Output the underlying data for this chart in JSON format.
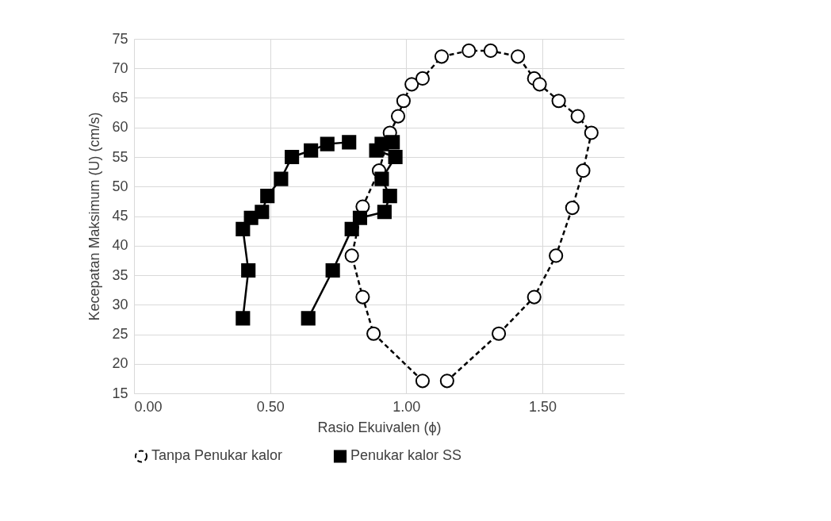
{
  "chart_data": {
    "type": "line",
    "xlabel": "Rasio Ekuivalen (ϕ)",
    "ylabel": "Kecepatan Maksimum  (U) (cm/s)",
    "xlim": [
      0,
      1.8
    ],
    "xticks": [
      {
        "value": 0,
        "label": "0.00"
      },
      {
        "value": 0.5,
        "label": "0.50"
      },
      {
        "value": 1,
        "label": "1.00"
      },
      {
        "value": 1.5,
        "label": "1.50"
      }
    ],
    "ylim": [
      15,
      75
    ],
    "yticks": [
      15,
      20,
      25,
      30,
      35,
      40,
      45,
      50,
      55,
      60,
      65,
      70,
      75
    ],
    "grid": true,
    "legend": "bottom",
    "series": [
      {
        "name": "Tanpa Penukar kalor",
        "color": "#000000",
        "marker": "circle",
        "line_style": "dashed",
        "x": [
          1.06,
          0.88,
          0.84,
          0.8,
          0.84,
          0.9,
          0.94,
          0.97,
          0.99,
          1.02,
          1.06,
          1.13,
          1.23,
          1.31,
          1.41,
          1.47,
          1.49,
          1.56,
          1.63,
          1.68,
          1.65,
          1.61,
          1.55,
          1.47,
          1.34,
          1.15
        ],
        "values": [
          17.1,
          25.1,
          31.3,
          38.3,
          46.6,
          52.7,
          59.1,
          61.9,
          64.5,
          67.3,
          68.3,
          72,
          73,
          73,
          72,
          68.3,
          67.3,
          64.5,
          61.9,
          59.1,
          52.7,
          46.4,
          38.3,
          31.3,
          25.1,
          17.1
        ]
      },
      {
        "name": "Penukar kalor SS",
        "color": "#000000",
        "marker": "square",
        "line_style": "solid",
        "x": [
          0.4,
          0.42,
          0.4,
          0.43,
          0.47,
          0.49,
          0.54,
          0.58,
          0.65,
          0.71,
          0.79,
          null,
          0.64,
          0.73,
          0.8,
          0.83,
          0.92,
          0.94,
          0.91,
          0.96,
          0.89,
          0.91,
          0.95
        ],
        "values": [
          27.7,
          35.8,
          42.8,
          44.7,
          45.7,
          48.4,
          51.3,
          55,
          56.1,
          57.2,
          57.5,
          null,
          27.7,
          35.8,
          42.8,
          44.7,
          45.7,
          48.4,
          51.3,
          55,
          56.1,
          57.2,
          57.5
        ]
      }
    ]
  }
}
